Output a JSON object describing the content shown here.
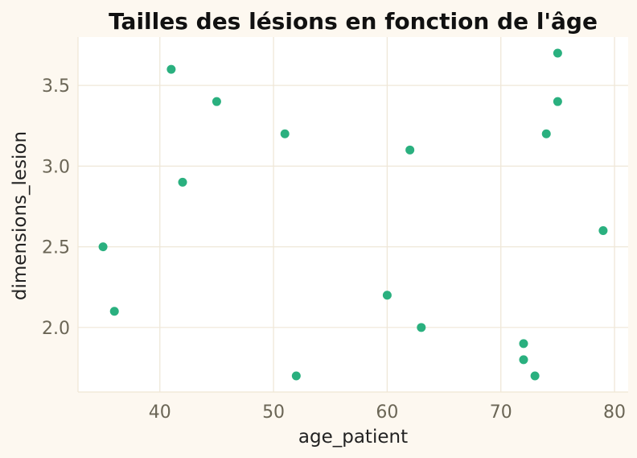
{
  "chart_data": {
    "type": "scatter",
    "title": "Tailles des lésions en fonction de l'âge",
    "xlabel": "age_patient",
    "ylabel": "dimensions_lesion",
    "xlim": [
      32.8,
      81.2
    ],
    "ylim": [
      1.6,
      3.8
    ],
    "xticks": [
      40,
      50,
      60,
      70,
      80
    ],
    "yticks": [
      2.0,
      2.5,
      3.0,
      3.5
    ],
    "xtick_labels": [
      "40",
      "50",
      "60",
      "70",
      "80"
    ],
    "ytick_labels": [
      "2.0",
      "2.5",
      "3.0",
      "3.5"
    ],
    "grid": true,
    "points": [
      {
        "x": 35,
        "y": 2.5
      },
      {
        "x": 36,
        "y": 2.1
      },
      {
        "x": 41,
        "y": 3.6
      },
      {
        "x": 42,
        "y": 2.9
      },
      {
        "x": 45,
        "y": 3.4
      },
      {
        "x": 51,
        "y": 3.2
      },
      {
        "x": 52,
        "y": 1.7
      },
      {
        "x": 60,
        "y": 2.2
      },
      {
        "x": 62,
        "y": 3.1
      },
      {
        "x": 63,
        "y": 2.0
      },
      {
        "x": 72,
        "y": 1.9
      },
      {
        "x": 72,
        "y": 1.8
      },
      {
        "x": 73,
        "y": 1.7
      },
      {
        "x": 74,
        "y": 3.2
      },
      {
        "x": 75,
        "y": 3.7
      },
      {
        "x": 75,
        "y": 3.4
      },
      {
        "x": 79,
        "y": 2.6
      }
    ],
    "colors": {
      "point": "#2ab07f",
      "background": "#fdf8f0",
      "plot_background": "#ffffff",
      "grid_major": "#efe7d8",
      "grid_minor": "#f1f1f1",
      "axis": "#f0e6d4"
    }
  }
}
